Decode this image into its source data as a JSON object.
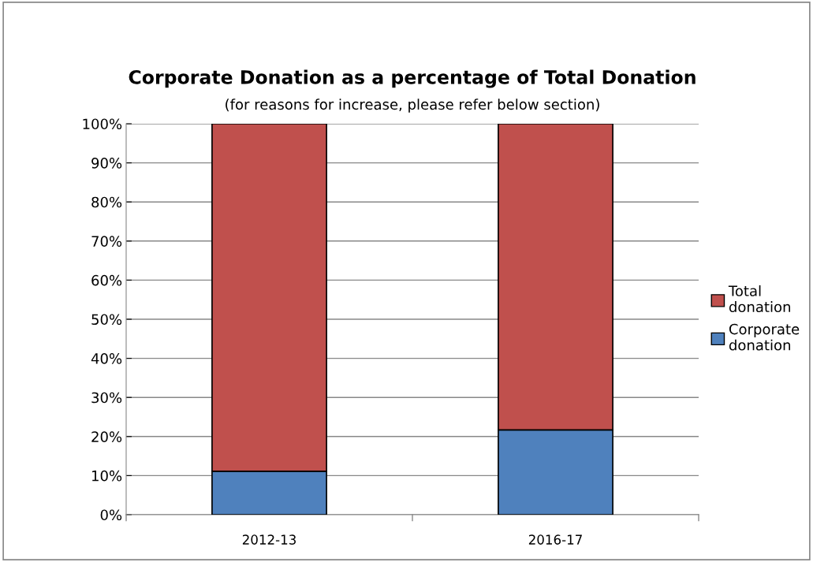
{
  "chart_data": {
    "type": "bar",
    "title": "Corporate Donation as a percentage of Total Donation",
    "subtitle": "(for reasons for increase, please refer below section)",
    "categories": [
      "2012-13",
      "2016-17"
    ],
    "stacked": true,
    "series": [
      {
        "name": "Corporate donation",
        "color": "#4f81bd",
        "values": [
          11.1,
          21.7
        ]
      },
      {
        "name": "Total donation",
        "color": "#c0504d",
        "values": [
          88.9,
          78.3
        ]
      }
    ],
    "ylim": [
      0,
      100
    ],
    "yticks": [
      {
        "value": 0,
        "label": "0%"
      },
      {
        "value": 10,
        "label": "10%"
      },
      {
        "value": 20,
        "label": "20%"
      },
      {
        "value": 30,
        "label": "30%"
      },
      {
        "value": 40,
        "label": "40%"
      },
      {
        "value": 50,
        "label": "50%"
      },
      {
        "value": 60,
        "label": "60%"
      },
      {
        "value": 70,
        "label": "70%"
      },
      {
        "value": 80,
        "label": "80%"
      },
      {
        "value": 90,
        "label": "90%"
      },
      {
        "value": 100,
        "label": "100%"
      }
    ],
    "grid": "y",
    "legend": "right"
  }
}
